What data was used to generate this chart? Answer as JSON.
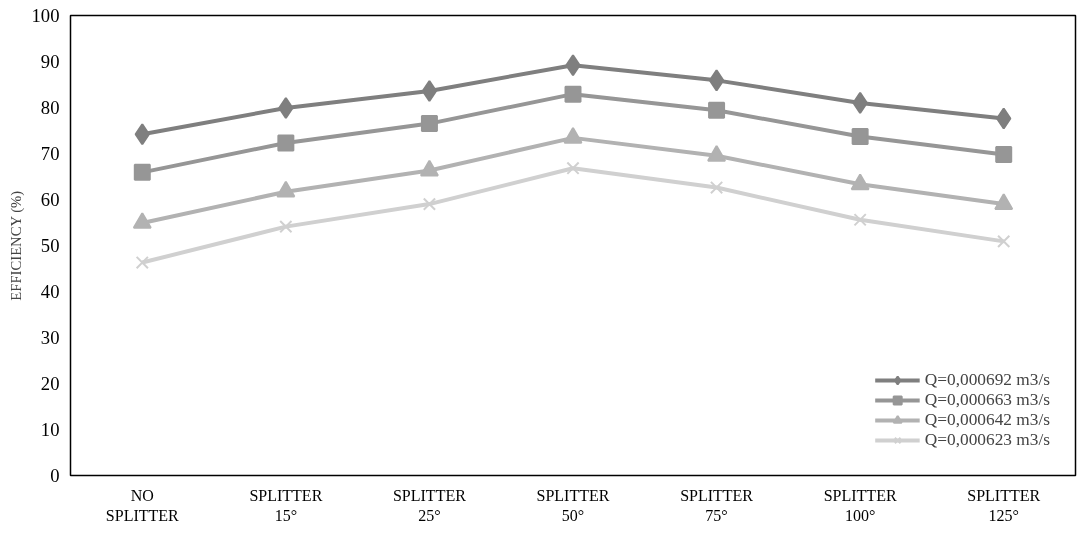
{
  "chart_data": {
    "type": "line",
    "ylabel": "EFFICIENCY (%)",
    "categories": [
      "NO SPLITTER",
      "SPLITTER 15°",
      "SPLITTER 25°",
      "SPLITTER 50°",
      "SPLITTER 75°",
      "SPLITTER 100°",
      "SPLITTER 125°"
    ],
    "series": [
      {
        "name": "Q=0,000692 m3/s",
        "color": "#7f7f7f",
        "marker": "diamond",
        "values": [
          74.2,
          79.9,
          83.6,
          89.2,
          85.9,
          81.0,
          77.6
        ]
      },
      {
        "name": "Q=0,000663 m3/s",
        "color": "#969696",
        "marker": "square",
        "values": [
          65.9,
          72.3,
          76.5,
          82.9,
          79.4,
          73.7,
          69.8
        ]
      },
      {
        "name": "Q=0,000642 m3/s",
        "color": "#b2b2b2",
        "marker": "triangle",
        "values": [
          54.9,
          61.7,
          66.3,
          73.4,
          69.5,
          63.3,
          59.0
        ]
      },
      {
        "name": "Q=0,000623 m3/s",
        "color": "#d0d0d0",
        "marker": "cross",
        "values": [
          46.3,
          54.1,
          59.0,
          66.8,
          62.6,
          55.6,
          50.9
        ]
      }
    ],
    "ylim": [
      0,
      100
    ],
    "yticks": [
      0,
      10,
      20,
      30,
      40,
      50,
      60,
      70,
      80,
      90,
      100
    ],
    "grid": false,
    "legend": "bottom right",
    "line_style": "solid"
  }
}
